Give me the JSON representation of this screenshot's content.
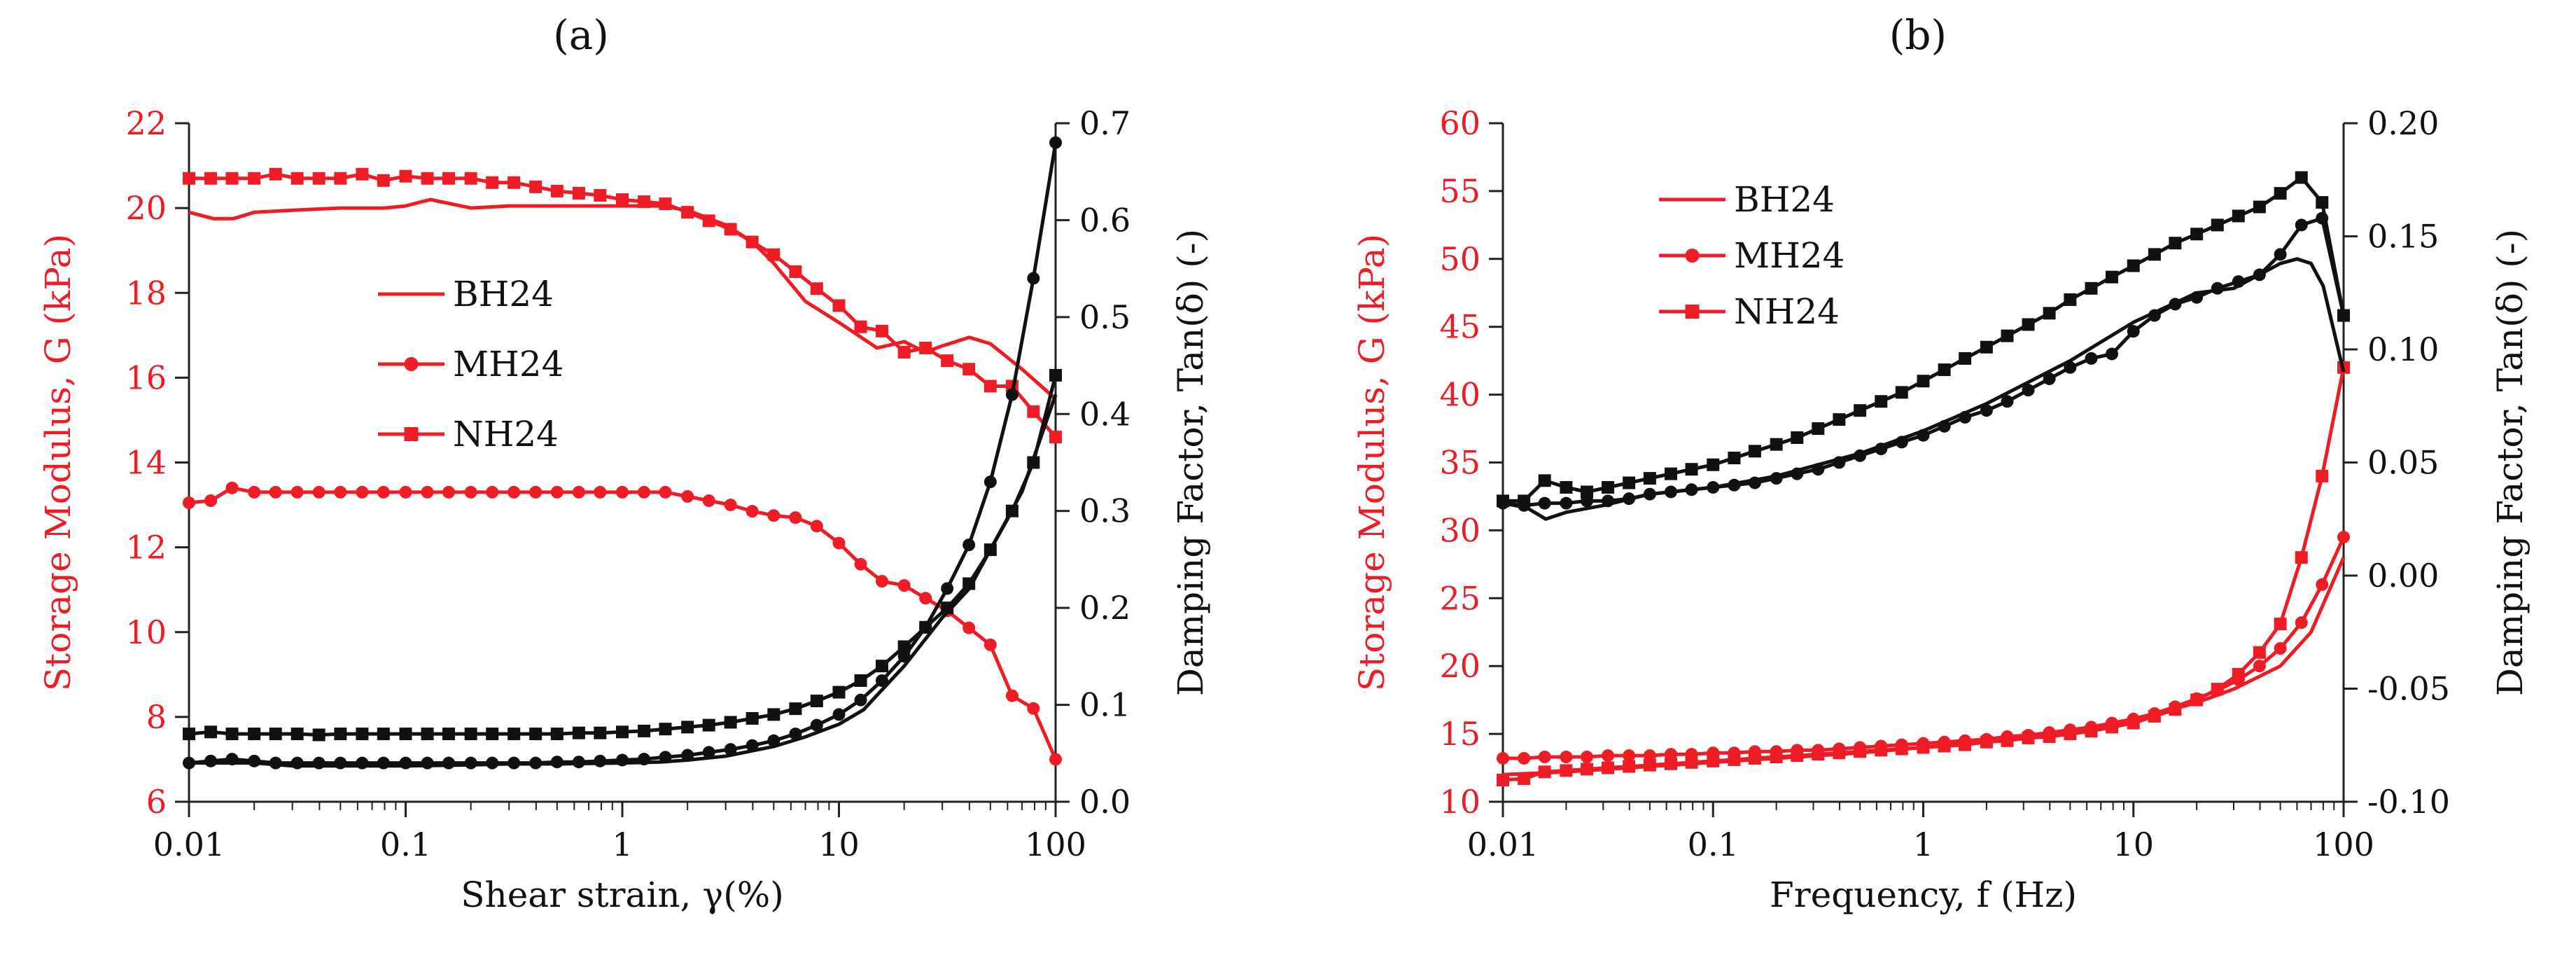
{
  "colors": {
    "left_axis": "#ee1c25",
    "right_axis": "#111111",
    "background": "#ffffff"
  },
  "chart_data": [
    {
      "type": "line",
      "panel_label": "(a)",
      "title": "",
      "xlabel": "Shear strain, γ(%)",
      "xscale": "log",
      "xlim": [
        0.01,
        100
      ],
      "x_ticks": [
        "0.01",
        "0.1",
        "1",
        "10",
        "100"
      ],
      "ylabel_left": "Storage Modulus, G (kPa)",
      "ylim_left": [
        6,
        22
      ],
      "y_ticks_left": [
        "6",
        "8",
        "10",
        "12",
        "14",
        "16",
        "18",
        "20",
        "22"
      ],
      "ylabel_right": "Damping Factor, Tan(δ) (-)",
      "ylim_right": [
        0.0,
        0.7
      ],
      "y_ticks_right": [
        "0.0",
        "0.1",
        "0.2",
        "0.3",
        "0.4",
        "0.5",
        "0.6",
        "0.7"
      ],
      "legend": {
        "position": "center-left",
        "entries": [
          "BH24",
          "MH24",
          "NH24"
        ]
      },
      "series": [
        {
          "name": "BH24",
          "axis": "left",
          "color": "#ee1c25",
          "marker": "none",
          "x": [
            0.01,
            0.013,
            0.016,
            0.02,
            0.03,
            0.05,
            0.08,
            0.1,
            0.13,
            0.2,
            0.3,
            0.5,
            1,
            1.5,
            2,
            3,
            4,
            5,
            7,
            10,
            15,
            20,
            25,
            30,
            40,
            50,
            70,
            100
          ],
          "values": [
            19.9,
            19.75,
            19.75,
            19.9,
            19.95,
            20.0,
            20.0,
            20.05,
            20.2,
            20.0,
            20.05,
            20.05,
            20.05,
            20.05,
            19.95,
            19.6,
            19.2,
            18.7,
            17.8,
            17.3,
            16.7,
            16.85,
            16.6,
            16.75,
            16.95,
            16.8,
            16.2,
            15.5
          ]
        },
        {
          "name": "MH24",
          "axis": "left",
          "color": "#ee1c25",
          "marker": "circle",
          "x": [
            0.01,
            0.0126,
            0.0158,
            0.02,
            0.0251,
            0.0316,
            0.0398,
            0.05,
            0.063,
            0.079,
            0.1,
            0.126,
            0.158,
            0.2,
            0.251,
            0.316,
            0.398,
            0.5,
            0.63,
            0.79,
            1,
            1.26,
            1.58,
            2,
            2.51,
            3.16,
            3.98,
            5,
            6.3,
            7.9,
            10,
            12.6,
            15.8,
            20,
            25.1,
            31.6,
            39.8,
            50,
            63,
            79,
            100
          ],
          "values": [
            13.05,
            13.1,
            13.4,
            13.3,
            13.3,
            13.3,
            13.3,
            13.3,
            13.3,
            13.3,
            13.3,
            13.3,
            13.3,
            13.3,
            13.3,
            13.3,
            13.3,
            13.3,
            13.3,
            13.3,
            13.3,
            13.3,
            13.3,
            13.2,
            13.1,
            13.0,
            12.85,
            12.75,
            12.7,
            12.5,
            12.1,
            11.6,
            11.2,
            11.1,
            10.8,
            10.5,
            10.1,
            9.7,
            8.5,
            8.2,
            7.0
          ]
        },
        {
          "name": "NH24",
          "axis": "left",
          "color": "#ee1c25",
          "marker": "square",
          "x": [
            0.01,
            0.0126,
            0.0158,
            0.02,
            0.0251,
            0.0316,
            0.0398,
            0.05,
            0.063,
            0.079,
            0.1,
            0.126,
            0.158,
            0.2,
            0.251,
            0.316,
            0.398,
            0.5,
            0.63,
            0.79,
            1,
            1.26,
            1.58,
            2,
            2.51,
            3.16,
            3.98,
            5,
            6.3,
            7.9,
            10,
            12.6,
            15.8,
            20,
            25.1,
            31.6,
            39.8,
            50,
            63,
            79,
            100
          ],
          "values": [
            20.7,
            20.7,
            20.7,
            20.7,
            20.8,
            20.7,
            20.7,
            20.7,
            20.8,
            20.65,
            20.75,
            20.7,
            20.7,
            20.7,
            20.6,
            20.6,
            20.5,
            20.4,
            20.35,
            20.3,
            20.2,
            20.15,
            20.1,
            19.9,
            19.7,
            19.5,
            19.2,
            18.9,
            18.5,
            18.1,
            17.7,
            17.2,
            17.1,
            16.6,
            16.7,
            16.4,
            16.2,
            15.8,
            15.8,
            15.2,
            14.6
          ]
        },
        {
          "name": "BH24 Tan(δ)",
          "axis": "right",
          "color": "#111111",
          "marker": "none",
          "x": [
            0.01,
            0.02,
            0.03,
            0.05,
            0.1,
            0.2,
            0.3,
            0.5,
            1,
            1.5,
            2,
            3,
            5,
            7,
            10,
            13,
            15,
            20,
            30,
            40,
            50,
            70,
            100
          ],
          "values": [
            0.04,
            0.04,
            0.037,
            0.037,
            0.037,
            0.038,
            0.039,
            0.039,
            0.04,
            0.041,
            0.043,
            0.047,
            0.057,
            0.067,
            0.08,
            0.095,
            0.11,
            0.14,
            0.19,
            0.22,
            0.26,
            0.32,
            0.42
          ]
        },
        {
          "name": "MH24 Tan(δ)",
          "axis": "right",
          "color": "#111111",
          "marker": "circle",
          "x": [
            0.01,
            0.0126,
            0.0158,
            0.02,
            0.0251,
            0.0316,
            0.0398,
            0.05,
            0.063,
            0.079,
            0.1,
            0.126,
            0.158,
            0.2,
            0.251,
            0.316,
            0.398,
            0.5,
            0.63,
            0.79,
            1,
            1.26,
            1.58,
            2,
            2.51,
            3.16,
            3.98,
            5,
            6.3,
            7.9,
            10,
            12.6,
            15.8,
            20,
            25.1,
            31.6,
            39.8,
            50,
            63,
            79,
            100
          ],
          "values": [
            0.04,
            0.042,
            0.044,
            0.042,
            0.04,
            0.04,
            0.04,
            0.04,
            0.04,
            0.04,
            0.04,
            0.04,
            0.04,
            0.04,
            0.04,
            0.04,
            0.04,
            0.041,
            0.041,
            0.042,
            0.043,
            0.044,
            0.046,
            0.048,
            0.051,
            0.054,
            0.058,
            0.063,
            0.07,
            0.079,
            0.09,
            0.105,
            0.125,
            0.15,
            0.18,
            0.22,
            0.265,
            0.33,
            0.42,
            0.54,
            0.68
          ]
        },
        {
          "name": "NH24 Tan(δ)",
          "axis": "right",
          "color": "#111111",
          "marker": "square",
          "x": [
            0.01,
            0.0126,
            0.0158,
            0.02,
            0.0251,
            0.0316,
            0.0398,
            0.05,
            0.063,
            0.079,
            0.1,
            0.126,
            0.158,
            0.2,
            0.251,
            0.316,
            0.398,
            0.5,
            0.63,
            0.79,
            1,
            1.26,
            1.58,
            2,
            2.51,
            3.16,
            3.98,
            5,
            6.3,
            7.9,
            10,
            12.6,
            15.8,
            20,
            25.1,
            31.6,
            39.8,
            50,
            63,
            79,
            100
          ],
          "values": [
            0.07,
            0.072,
            0.07,
            0.07,
            0.07,
            0.07,
            0.069,
            0.07,
            0.07,
            0.07,
            0.07,
            0.07,
            0.07,
            0.07,
            0.07,
            0.07,
            0.07,
            0.07,
            0.071,
            0.071,
            0.072,
            0.073,
            0.075,
            0.077,
            0.079,
            0.082,
            0.086,
            0.09,
            0.096,
            0.104,
            0.113,
            0.125,
            0.14,
            0.16,
            0.18,
            0.2,
            0.225,
            0.26,
            0.3,
            0.35,
            0.44
          ]
        }
      ]
    },
    {
      "type": "line",
      "panel_label": "(b)",
      "title": "",
      "xlabel": "Frequency, f (Hz)",
      "xscale": "log",
      "xlim": [
        0.01,
        100
      ],
      "x_ticks": [
        "0.01",
        "0.1",
        "1",
        "10",
        "100"
      ],
      "ylabel_left": "Storage Modulus, G (kPa)",
      "ylim_left": [
        10,
        60
      ],
      "y_ticks_left": [
        "10",
        "15",
        "20",
        "25",
        "30",
        "35",
        "40",
        "45",
        "50",
        "55",
        "60"
      ],
      "ylabel_right": "Damping Factor, Tan(δ) (-)",
      "ylim_right": [
        -0.1,
        0.2
      ],
      "y_ticks_right": [
        "-0.10",
        "-0.05",
        "0.00",
        "0.05",
        "0.10",
        "0.15",
        "0.20"
      ],
      "legend": {
        "position": "top-left",
        "entries": [
          "BH24",
          "MH24",
          "NH24"
        ]
      },
      "series": [
        {
          "name": "BH24",
          "axis": "left",
          "color": "#ee1c25",
          "marker": "none",
          "x": [
            0.01,
            0.02,
            0.05,
            0.1,
            0.2,
            0.5,
            1,
            2,
            5,
            10,
            20,
            30,
            50,
            70,
            100
          ],
          "values": [
            12.0,
            12.2,
            12.6,
            12.9,
            13.2,
            13.6,
            14.0,
            14.5,
            15.2,
            16.0,
            17.3,
            18.3,
            20.0,
            22.5,
            28.0
          ]
        },
        {
          "name": "MH24",
          "axis": "left",
          "color": "#ee1c25",
          "marker": "circle",
          "x": [
            0.01,
            0.0126,
            0.0158,
            0.02,
            0.0251,
            0.0316,
            0.0398,
            0.05,
            0.063,
            0.079,
            0.1,
            0.126,
            0.158,
            0.2,
            0.251,
            0.316,
            0.398,
            0.5,
            0.63,
            0.79,
            1,
            1.26,
            1.58,
            2,
            2.51,
            3.16,
            3.98,
            5,
            6.3,
            7.9,
            10,
            12.6,
            15.8,
            20,
            25.1,
            31.6,
            39.8,
            50,
            63,
            79,
            100
          ],
          "values": [
            13.2,
            13.2,
            13.3,
            13.3,
            13.3,
            13.4,
            13.4,
            13.4,
            13.5,
            13.5,
            13.6,
            13.6,
            13.7,
            13.7,
            13.8,
            13.8,
            13.9,
            14.0,
            14.1,
            14.2,
            14.3,
            14.4,
            14.5,
            14.6,
            14.8,
            14.9,
            15.1,
            15.3,
            15.5,
            15.8,
            16.1,
            16.5,
            17.0,
            17.6,
            18.2,
            19.0,
            20.0,
            21.3,
            23.2,
            26.0,
            29.5
          ]
        },
        {
          "name": "NH24",
          "axis": "left",
          "color": "#ee1c25",
          "marker": "square",
          "x": [
            0.01,
            0.0126,
            0.0158,
            0.02,
            0.0251,
            0.0316,
            0.0398,
            0.05,
            0.063,
            0.079,
            0.1,
            0.126,
            0.158,
            0.2,
            0.251,
            0.316,
            0.398,
            0.5,
            0.63,
            0.79,
            1,
            1.26,
            1.58,
            2,
            2.51,
            3.16,
            3.98,
            5,
            6.3,
            7.9,
            10,
            12.6,
            15.8,
            20,
            25.1,
            31.6,
            39.8,
            50,
            63,
            79,
            100
          ],
          "values": [
            11.6,
            11.7,
            12.2,
            12.3,
            12.4,
            12.5,
            12.6,
            12.7,
            12.8,
            12.9,
            13.0,
            13.1,
            13.2,
            13.3,
            13.4,
            13.5,
            13.6,
            13.7,
            13.8,
            13.9,
            14.0,
            14.1,
            14.2,
            14.4,
            14.5,
            14.7,
            14.8,
            15.0,
            15.2,
            15.5,
            15.8,
            16.3,
            16.8,
            17.5,
            18.3,
            19.4,
            21.0,
            23.1,
            28.0,
            34.0,
            42.0
          ]
        },
        {
          "name": "BH24 Tan(δ)",
          "axis": "right",
          "color": "#111111",
          "marker": "none",
          "x": [
            0.01,
            0.013,
            0.016,
            0.02,
            0.03,
            0.05,
            0.1,
            0.2,
            0.5,
            1,
            2,
            5,
            10,
            20,
            30,
            50,
            60,
            70,
            80,
            100
          ],
          "values": [
            0.032,
            0.03,
            0.025,
            0.028,
            0.031,
            0.036,
            0.039,
            0.044,
            0.054,
            0.064,
            0.076,
            0.095,
            0.112,
            0.125,
            0.127,
            0.138,
            0.14,
            0.138,
            0.128,
            0.09
          ]
        },
        {
          "name": "MH24 Tan(δ)",
          "axis": "right",
          "color": "#111111",
          "marker": "circle",
          "x": [
            0.01,
            0.0126,
            0.0158,
            0.02,
            0.0251,
            0.0316,
            0.0398,
            0.05,
            0.063,
            0.079,
            0.1,
            0.126,
            0.158,
            0.2,
            0.251,
            0.316,
            0.398,
            0.5,
            0.63,
            0.79,
            1,
            1.26,
            1.58,
            2,
            2.51,
            3.16,
            3.98,
            5,
            6.3,
            7.9,
            10,
            12.6,
            15.8,
            20,
            25.1,
            31.6,
            39.8,
            50,
            63,
            79,
            100
          ],
          "values": [
            0.032,
            0.031,
            0.032,
            0.032,
            0.033,
            0.033,
            0.034,
            0.036,
            0.037,
            0.038,
            0.039,
            0.04,
            0.041,
            0.043,
            0.045,
            0.047,
            0.05,
            0.053,
            0.056,
            0.059,
            0.062,
            0.066,
            0.07,
            0.073,
            0.077,
            0.082,
            0.087,
            0.092,
            0.096,
            0.098,
            0.108,
            0.115,
            0.12,
            0.123,
            0.127,
            0.13,
            0.133,
            0.142,
            0.155,
            0.158,
            0.115
          ]
        },
        {
          "name": "NH24 Tan(δ)",
          "axis": "right",
          "color": "#111111",
          "marker": "square",
          "x": [
            0.01,
            0.0126,
            0.0158,
            0.02,
            0.0251,
            0.0316,
            0.0398,
            0.05,
            0.063,
            0.079,
            0.1,
            0.126,
            0.158,
            0.2,
            0.251,
            0.316,
            0.398,
            0.5,
            0.63,
            0.79,
            1,
            1.26,
            1.58,
            2,
            2.51,
            3.16,
            3.98,
            5,
            6.3,
            7.9,
            10,
            12.6,
            15.8,
            20,
            25.1,
            31.6,
            39.8,
            50,
            63,
            79,
            100
          ],
          "values": [
            0.033,
            0.033,
            0.042,
            0.039,
            0.037,
            0.039,
            0.041,
            0.043,
            0.045,
            0.047,
            0.049,
            0.052,
            0.055,
            0.058,
            0.061,
            0.065,
            0.069,
            0.073,
            0.077,
            0.081,
            0.086,
            0.091,
            0.096,
            0.101,
            0.106,
            0.111,
            0.116,
            0.122,
            0.127,
            0.132,
            0.137,
            0.142,
            0.147,
            0.151,
            0.155,
            0.159,
            0.163,
            0.169,
            0.176,
            0.165,
            0.115
          ]
        }
      ]
    }
  ]
}
